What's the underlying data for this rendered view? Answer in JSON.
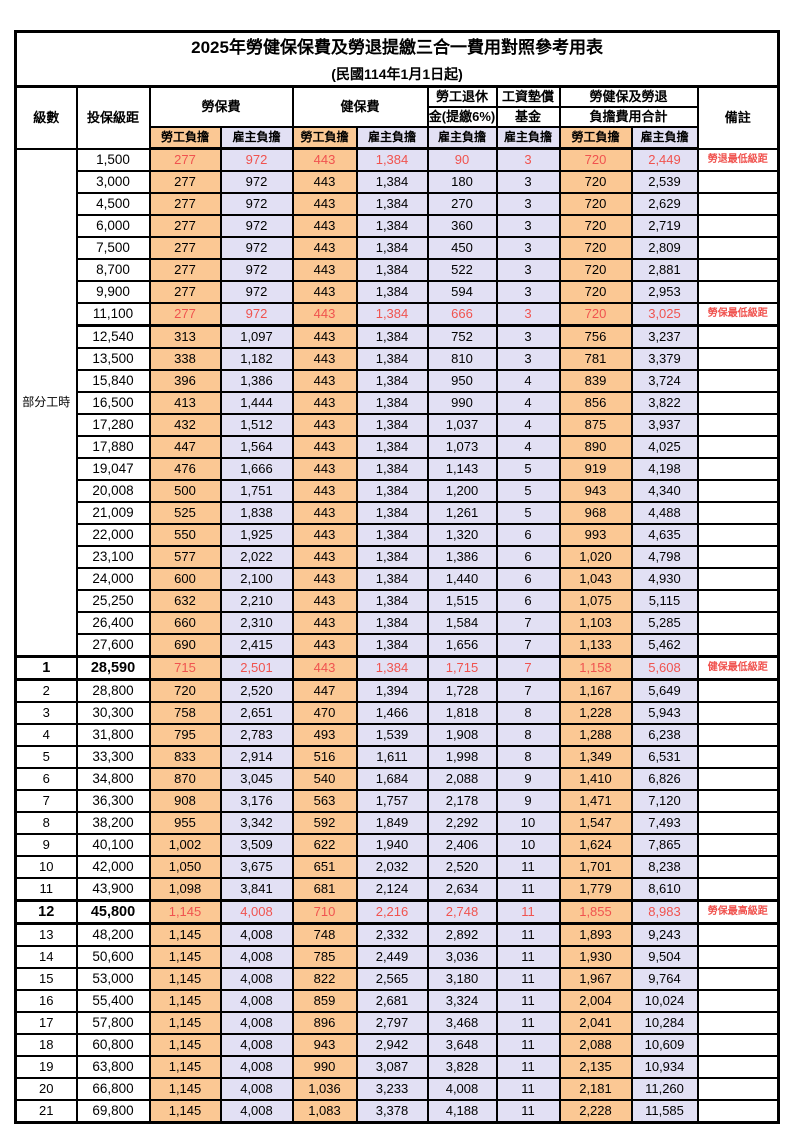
{
  "title": "2025年勞健保保費及勞退提繳三合一費用對照參考用表",
  "subtitle": "(民國114年1月1日起)",
  "header": {
    "level": "級數",
    "salary": "投保級距",
    "labor": "勞保費",
    "health": "健保費",
    "pension_line1": "勞工退休",
    "pension_line2": "金(提繳6%)",
    "wage_fund_line1": "工資墊償",
    "wage_fund_line2": "基金",
    "total_line1": "勞健保及勞退",
    "total_line2": "負擔費用合計",
    "note": "備註",
    "employee": "勞工負擔",
    "employer": "雇主負擔"
  },
  "part_time_label": "部分工時",
  "colors": {
    "employee_bg": "#FBC894",
    "employer_bg": "#E2E0F4",
    "highlight_text": "#F0534F",
    "border": "#000000"
  },
  "rows": [
    {
      "lv": "",
      "sal": "1,500",
      "v": [
        "277",
        "972",
        "443",
        "1,384",
        "90",
        "3",
        "720",
        "2,449"
      ],
      "note": "勞退最低級距",
      "hl": true
    },
    {
      "lv": "",
      "sal": "3,000",
      "v": [
        "277",
        "972",
        "443",
        "1,384",
        "180",
        "3",
        "720",
        "2,539"
      ],
      "note": ""
    },
    {
      "lv": "",
      "sal": "4,500",
      "v": [
        "277",
        "972",
        "443",
        "1,384",
        "270",
        "3",
        "720",
        "2,629"
      ],
      "note": ""
    },
    {
      "lv": "",
      "sal": "6,000",
      "v": [
        "277",
        "972",
        "443",
        "1,384",
        "360",
        "3",
        "720",
        "2,719"
      ],
      "note": ""
    },
    {
      "lv": "",
      "sal": "7,500",
      "v": [
        "277",
        "972",
        "443",
        "1,384",
        "450",
        "3",
        "720",
        "2,809"
      ],
      "note": ""
    },
    {
      "lv": "",
      "sal": "8,700",
      "v": [
        "277",
        "972",
        "443",
        "1,384",
        "522",
        "3",
        "720",
        "2,881"
      ],
      "note": ""
    },
    {
      "lv": "",
      "sal": "9,900",
      "v": [
        "277",
        "972",
        "443",
        "1,384",
        "594",
        "3",
        "720",
        "2,953"
      ],
      "note": ""
    },
    {
      "lv": "",
      "sal": "11,100",
      "v": [
        "277",
        "972",
        "443",
        "1,384",
        "666",
        "3",
        "720",
        "3,025"
      ],
      "note": "勞保最低級距",
      "hl": true,
      "tb": true
    },
    {
      "lv": "",
      "sal": "12,540",
      "v": [
        "313",
        "1,097",
        "443",
        "1,384",
        "752",
        "3",
        "756",
        "3,237"
      ],
      "note": ""
    },
    {
      "lv": "",
      "sal": "13,500",
      "v": [
        "338",
        "1,182",
        "443",
        "1,384",
        "810",
        "3",
        "781",
        "3,379"
      ],
      "note": ""
    },
    {
      "lv": "",
      "sal": "15,840",
      "v": [
        "396",
        "1,386",
        "443",
        "1,384",
        "950",
        "4",
        "839",
        "3,724"
      ],
      "note": ""
    },
    {
      "lv": "",
      "sal": "16,500",
      "v": [
        "413",
        "1,444",
        "443",
        "1,384",
        "990",
        "4",
        "856",
        "3,822"
      ],
      "note": ""
    },
    {
      "lv": "",
      "sal": "17,280",
      "v": [
        "432",
        "1,512",
        "443",
        "1,384",
        "1,037",
        "4",
        "875",
        "3,937"
      ],
      "note": ""
    },
    {
      "lv": "",
      "sal": "17,880",
      "v": [
        "447",
        "1,564",
        "443",
        "1,384",
        "1,073",
        "4",
        "890",
        "4,025"
      ],
      "note": ""
    },
    {
      "lv": "",
      "sal": "19,047",
      "v": [
        "476",
        "1,666",
        "443",
        "1,384",
        "1,143",
        "5",
        "919",
        "4,198"
      ],
      "note": ""
    },
    {
      "lv": "",
      "sal": "20,008",
      "v": [
        "500",
        "1,751",
        "443",
        "1,384",
        "1,200",
        "5",
        "943",
        "4,340"
      ],
      "note": ""
    },
    {
      "lv": "",
      "sal": "21,009",
      "v": [
        "525",
        "1,838",
        "443",
        "1,384",
        "1,261",
        "5",
        "968",
        "4,488"
      ],
      "note": ""
    },
    {
      "lv": "",
      "sal": "22,000",
      "v": [
        "550",
        "1,925",
        "443",
        "1,384",
        "1,320",
        "6",
        "993",
        "4,635"
      ],
      "note": ""
    },
    {
      "lv": "",
      "sal": "23,100",
      "v": [
        "577",
        "2,022",
        "443",
        "1,384",
        "1,386",
        "6",
        "1,020",
        "4,798"
      ],
      "note": ""
    },
    {
      "lv": "",
      "sal": "24,000",
      "v": [
        "600",
        "2,100",
        "443",
        "1,384",
        "1,440",
        "6",
        "1,043",
        "4,930"
      ],
      "note": ""
    },
    {
      "lv": "",
      "sal": "25,250",
      "v": [
        "632",
        "2,210",
        "443",
        "1,384",
        "1,515",
        "6",
        "1,075",
        "5,115"
      ],
      "note": ""
    },
    {
      "lv": "",
      "sal": "26,400",
      "v": [
        "660",
        "2,310",
        "443",
        "1,384",
        "1,584",
        "7",
        "1,103",
        "5,285"
      ],
      "note": ""
    },
    {
      "lv": "",
      "sal": "27,600",
      "v": [
        "690",
        "2,415",
        "443",
        "1,384",
        "1,656",
        "7",
        "1,133",
        "5,462"
      ],
      "note": ""
    },
    {
      "lv": "1",
      "sal": "28,590",
      "v": [
        "715",
        "2,501",
        "443",
        "1,384",
        "1,715",
        "7",
        "1,158",
        "5,608"
      ],
      "note": "健保最低級距",
      "hl": true,
      "tt": true,
      "tb": true,
      "bid": true
    },
    {
      "lv": "2",
      "sal": "28,800",
      "v": [
        "720",
        "2,520",
        "447",
        "1,394",
        "1,728",
        "7",
        "1,167",
        "5,649"
      ],
      "note": ""
    },
    {
      "lv": "3",
      "sal": "30,300",
      "v": [
        "758",
        "2,651",
        "470",
        "1,466",
        "1,818",
        "8",
        "1,228",
        "5,943"
      ],
      "note": ""
    },
    {
      "lv": "4",
      "sal": "31,800",
      "v": [
        "795",
        "2,783",
        "493",
        "1,539",
        "1,908",
        "8",
        "1,288",
        "6,238"
      ],
      "note": ""
    },
    {
      "lv": "5",
      "sal": "33,300",
      "v": [
        "833",
        "2,914",
        "516",
        "1,611",
        "1,998",
        "8",
        "1,349",
        "6,531"
      ],
      "note": ""
    },
    {
      "lv": "6",
      "sal": "34,800",
      "v": [
        "870",
        "3,045",
        "540",
        "1,684",
        "2,088",
        "9",
        "1,410",
        "6,826"
      ],
      "note": ""
    },
    {
      "lv": "7",
      "sal": "36,300",
      "v": [
        "908",
        "3,176",
        "563",
        "1,757",
        "2,178",
        "9",
        "1,471",
        "7,120"
      ],
      "note": ""
    },
    {
      "lv": "8",
      "sal": "38,200",
      "v": [
        "955",
        "3,342",
        "592",
        "1,849",
        "2,292",
        "10",
        "1,547",
        "7,493"
      ],
      "note": ""
    },
    {
      "lv": "9",
      "sal": "40,100",
      "v": [
        "1,002",
        "3,509",
        "622",
        "1,940",
        "2,406",
        "10",
        "1,624",
        "7,865"
      ],
      "note": ""
    },
    {
      "lv": "10",
      "sal": "42,000",
      "v": [
        "1,050",
        "3,675",
        "651",
        "2,032",
        "2,520",
        "11",
        "1,701",
        "8,238"
      ],
      "note": ""
    },
    {
      "lv": "11",
      "sal": "43,900",
      "v": [
        "1,098",
        "3,841",
        "681",
        "2,124",
        "2,634",
        "11",
        "1,779",
        "8,610"
      ],
      "note": ""
    },
    {
      "lv": "12",
      "sal": "45,800",
      "v": [
        "1,145",
        "4,008",
        "710",
        "2,216",
        "2,748",
        "11",
        "1,855",
        "8,983"
      ],
      "note": "勞保最高級距",
      "hl": true,
      "tt": true,
      "tb": true,
      "bid": true
    },
    {
      "lv": "13",
      "sal": "48,200",
      "v": [
        "1,145",
        "4,008",
        "748",
        "2,332",
        "2,892",
        "11",
        "1,893",
        "9,243"
      ],
      "note": ""
    },
    {
      "lv": "14",
      "sal": "50,600",
      "v": [
        "1,145",
        "4,008",
        "785",
        "2,449",
        "3,036",
        "11",
        "1,930",
        "9,504"
      ],
      "note": ""
    },
    {
      "lv": "15",
      "sal": "53,000",
      "v": [
        "1,145",
        "4,008",
        "822",
        "2,565",
        "3,180",
        "11",
        "1,967",
        "9,764"
      ],
      "note": ""
    },
    {
      "lv": "16",
      "sal": "55,400",
      "v": [
        "1,145",
        "4,008",
        "859",
        "2,681",
        "3,324",
        "11",
        "2,004",
        "10,024"
      ],
      "note": ""
    },
    {
      "lv": "17",
      "sal": "57,800",
      "v": [
        "1,145",
        "4,008",
        "896",
        "2,797",
        "3,468",
        "11",
        "2,041",
        "10,284"
      ],
      "note": ""
    },
    {
      "lv": "18",
      "sal": "60,800",
      "v": [
        "1,145",
        "4,008",
        "943",
        "2,942",
        "3,648",
        "11",
        "2,088",
        "10,609"
      ],
      "note": ""
    },
    {
      "lv": "19",
      "sal": "63,800",
      "v": [
        "1,145",
        "4,008",
        "990",
        "3,087",
        "3,828",
        "11",
        "2,135",
        "10,934"
      ],
      "note": ""
    },
    {
      "lv": "20",
      "sal": "66,800",
      "v": [
        "1,145",
        "4,008",
        "1,036",
        "3,233",
        "4,008",
        "11",
        "2,181",
        "11,260"
      ],
      "note": ""
    },
    {
      "lv": "21",
      "sal": "69,800",
      "v": [
        "1,145",
        "4,008",
        "1,083",
        "3,378",
        "4,188",
        "11",
        "2,228",
        "11,585"
      ],
      "note": ""
    }
  ]
}
